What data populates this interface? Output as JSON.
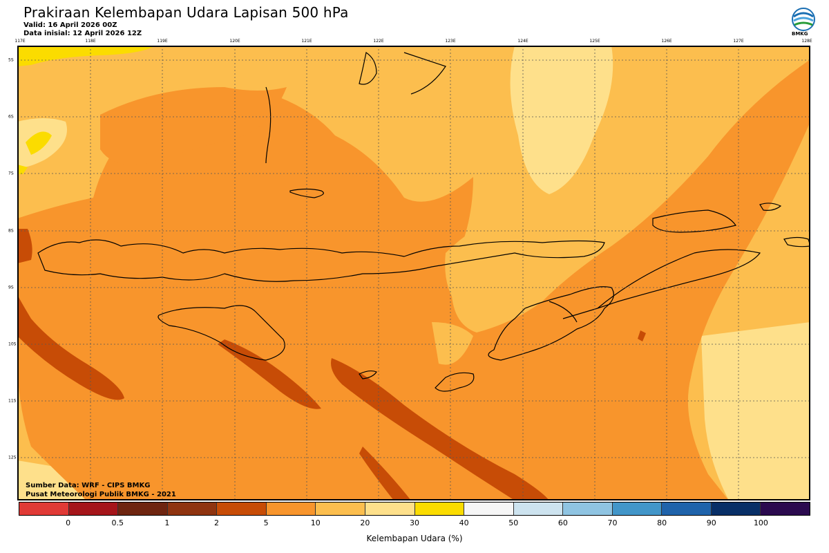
{
  "header": {
    "title": "Prakiraan Kelembapan Udara Lapisan 500 hPa",
    "valid": "Valid: 16 April 2026 00Z",
    "initial": "Data inisial: 12 April 2026 12Z"
  },
  "logo": {
    "label": "BMKG",
    "icon": "bmkg-logo-icon"
  },
  "lon_labels": [
    "117E",
    "118E",
    "119E",
    "120E",
    "121E",
    "122E",
    "123E",
    "124E",
    "125E",
    "126E",
    "127E",
    "128E"
  ],
  "lat_labels": [
    "5S",
    "6S",
    "7S",
    "8S",
    "9S",
    "10S",
    "11S",
    "12S"
  ],
  "credits": {
    "source": "Sumber Data: WRF - CIPS BMKG",
    "org": "Pusat Meteorologi Publik BMKG - 2021"
  },
  "colorbar": {
    "colors": [
      "#e03a36",
      "#a5151a",
      "#6e2510",
      "#8f3410",
      "#c74c06",
      "#f8952c",
      "#fcbe4e",
      "#fee08b",
      "#fbdc00",
      "#f6f6f6",
      "#cde3ef",
      "#8fc4e2",
      "#4296c9",
      "#1f63ab",
      "#082f67",
      "#2b0a4f"
    ],
    "ticks": [
      "0",
      "0.5",
      "1",
      "2",
      "5",
      "10",
      "20",
      "30",
      "40",
      "50",
      "60",
      "70",
      "80",
      "90",
      "100"
    ],
    "label": "Kelembapan Udara (%)"
  },
  "palette": {
    "level_10_20": "#f8952c",
    "level_20_30": "#fcbe4e",
    "level_30_40": "#fee08b",
    "level_40_50": "#fbdc00",
    "level_5_10": "#c74c06"
  }
}
